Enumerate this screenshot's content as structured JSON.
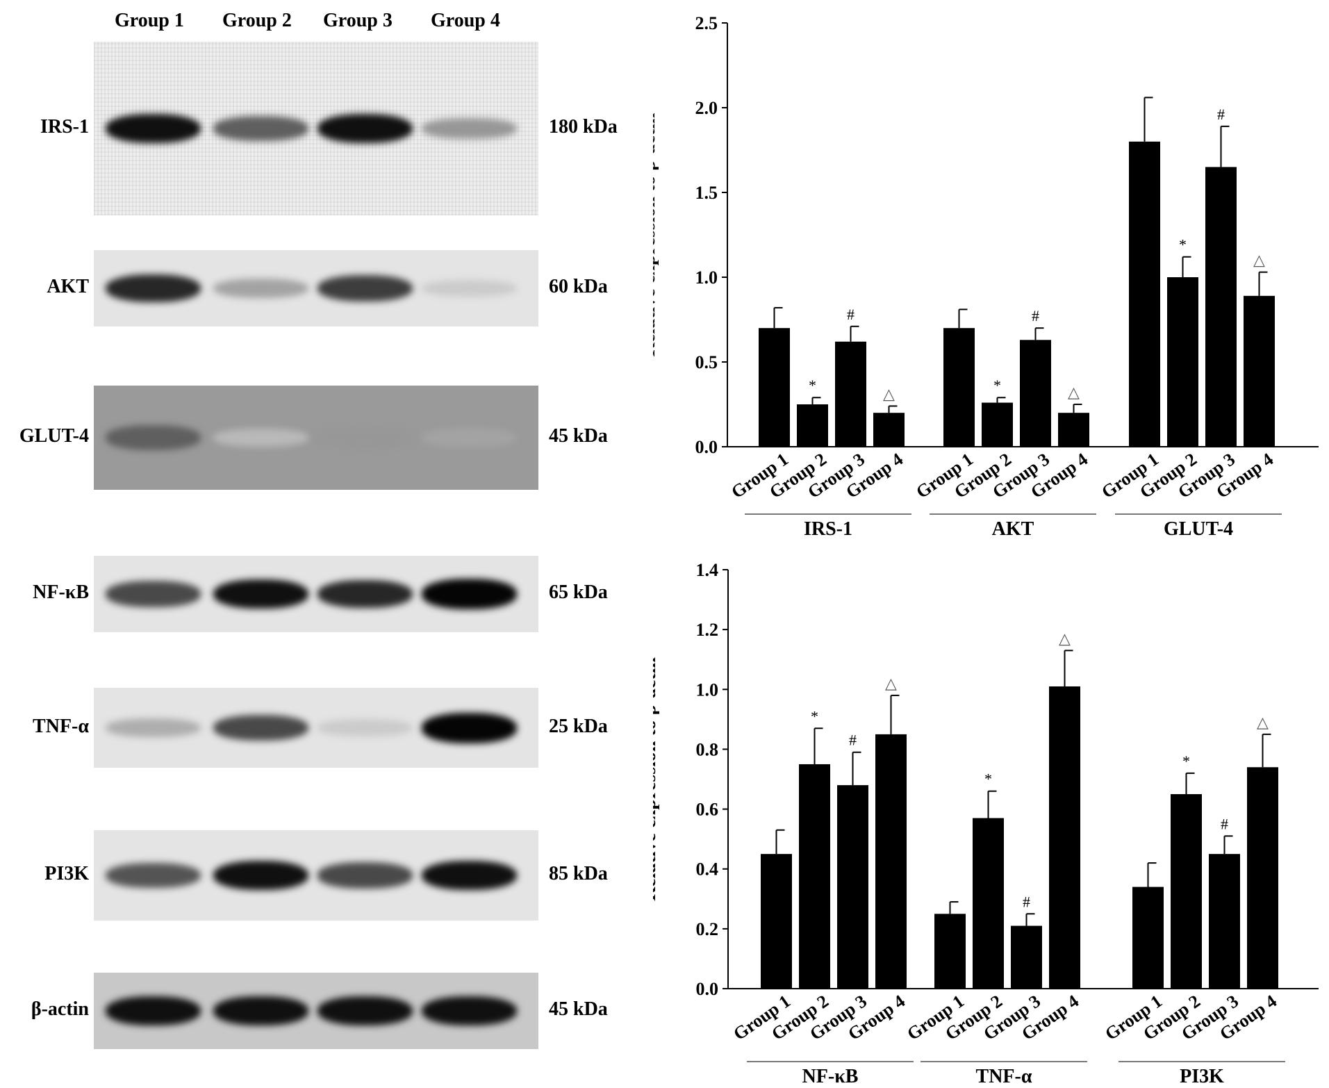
{
  "blot": {
    "lanes": [
      "Group 1",
      "Group 2",
      "Group 3",
      "Group 4"
    ],
    "rows": [
      {
        "protein": "IRS-1",
        "kda": "180 kDa",
        "intensities": [
          0.95,
          0.6,
          0.95,
          0.35
        ],
        "background": "noisy"
      },
      {
        "protein": "AKT",
        "kda": "60 kDa",
        "intensities": [
          0.85,
          0.3,
          0.75,
          0.12
        ],
        "background": "light"
      },
      {
        "protein": "GLUT-4",
        "kda": "45 kDa",
        "intensities": [
          0.6,
          0.2,
          0.35,
          0.3
        ],
        "background": "dark"
      },
      {
        "protein": "NF-κB",
        "kda": "65 kDa",
        "intensities": [
          0.7,
          0.95,
          0.85,
          1.0
        ],
        "background": "light"
      },
      {
        "protein": "TNF-α",
        "kda": "25 kDa",
        "intensities": [
          0.25,
          0.7,
          0.12,
          1.0
        ],
        "background": "light"
      },
      {
        "protein": "PI3K",
        "kda": "85 kDa",
        "intensities": [
          0.65,
          0.95,
          0.7,
          0.95
        ],
        "background": "light"
      },
      {
        "protein": "β-actin",
        "kda": "45 kDa",
        "intensities": [
          0.95,
          0.95,
          0.95,
          0.95
        ],
        "background": "medium"
      }
    ]
  },
  "chart_data": [
    {
      "type": "bar",
      "title": "",
      "xlabel": "",
      "ylabel": "Relative expression to β-actin",
      "ylim": [
        0,
        2.5
      ],
      "yticks": [
        "0.0",
        "0.5",
        "1.0",
        "1.5",
        "2.0",
        "2.5"
      ],
      "categories": [
        "Group 1",
        "Group 2",
        "Group 3",
        "Group 4"
      ],
      "groups": [
        {
          "name": "IRS-1",
          "values": [
            0.7,
            0.25,
            0.62,
            0.2
          ],
          "errors": [
            0.12,
            0.04,
            0.09,
            0.04
          ],
          "marks": [
            "",
            "*",
            "#",
            "△"
          ]
        },
        {
          "name": "AKT",
          "values": [
            0.7,
            0.26,
            0.63,
            0.2
          ],
          "errors": [
            0.11,
            0.03,
            0.07,
            0.05
          ],
          "marks": [
            "",
            "*",
            "#",
            "△"
          ]
        },
        {
          "name": "GLUT-4",
          "values": [
            1.8,
            1.0,
            1.65,
            0.89
          ],
          "errors": [
            0.26,
            0.12,
            0.24,
            0.14
          ],
          "marks": [
            "",
            "*",
            "#",
            "△"
          ]
        }
      ],
      "grid": false,
      "bar_color": "#000000"
    },
    {
      "type": "bar",
      "title": "",
      "xlabel": "",
      "ylabel": "Relative expression to β-actin",
      "ylim": [
        0,
        1.4
      ],
      "yticks": [
        "0.0",
        "0.2",
        "0.4",
        "0.6",
        "0.8",
        "1.0",
        "1.2",
        "1.4"
      ],
      "categories": [
        "Group 1",
        "Group 2",
        "Group 3",
        "Group 4"
      ],
      "groups": [
        {
          "name": "NF-κB",
          "values": [
            0.45,
            0.75,
            0.68,
            0.85
          ],
          "errors": [
            0.08,
            0.12,
            0.11,
            0.13
          ],
          "marks": [
            "",
            "*",
            "#",
            "△"
          ]
        },
        {
          "name": "TNF-α",
          "values": [
            0.25,
            0.57,
            0.21,
            1.01
          ],
          "errors": [
            0.04,
            0.09,
            0.04,
            0.12
          ],
          "marks": [
            "",
            "*",
            "#",
            "△"
          ]
        },
        {
          "name": "PI3K",
          "values": [
            0.34,
            0.65,
            0.45,
            0.74
          ],
          "errors": [
            0.08,
            0.07,
            0.06,
            0.11
          ],
          "marks": [
            "",
            "*",
            "#",
            "△"
          ]
        }
      ],
      "grid": false,
      "bar_color": "#000000"
    }
  ]
}
